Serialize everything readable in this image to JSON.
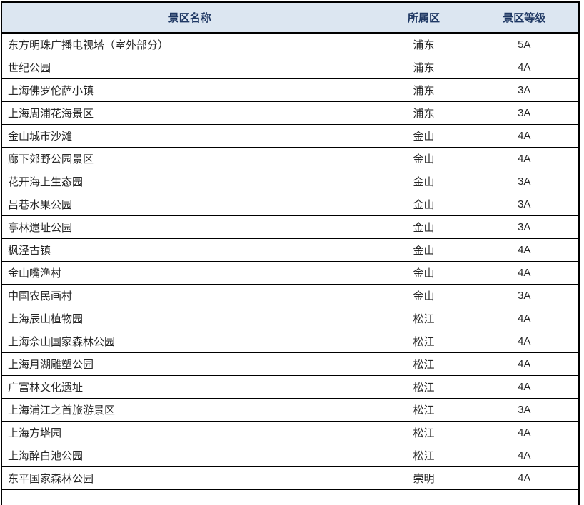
{
  "table": {
    "columns": [
      {
        "label": "景区名称"
      },
      {
        "label": "所属区"
      },
      {
        "label": "景区等级"
      }
    ],
    "rows": [
      {
        "name": "东方明珠广播电视塔（室外部分）",
        "district": "浦东",
        "level": "5A"
      },
      {
        "name": "世纪公园",
        "district": "浦东",
        "level": "4A"
      },
      {
        "name": "上海佛罗伦萨小镇",
        "district": "浦东",
        "level": "3A"
      },
      {
        "name": "上海周浦花海景区",
        "district": "浦东",
        "level": "3A"
      },
      {
        "name": "金山城市沙滩",
        "district": "金山",
        "level": "4A"
      },
      {
        "name": "廊下郊野公园景区",
        "district": "金山",
        "level": "4A"
      },
      {
        "name": "花开海上生态园",
        "district": "金山",
        "level": "3A"
      },
      {
        "name": "吕巷水果公园",
        "district": "金山",
        "level": "3A"
      },
      {
        "name": "亭林遗址公园",
        "district": "金山",
        "level": "3A"
      },
      {
        "name": "枫泾古镇",
        "district": "金山",
        "level": "4A"
      },
      {
        "name": "金山嘴渔村",
        "district": "金山",
        "level": "4A"
      },
      {
        "name": "中国农民画村",
        "district": "金山",
        "level": "3A"
      },
      {
        "name": "上海辰山植物园",
        "district": "松江",
        "level": "4A"
      },
      {
        "name": "上海佘山国家森林公园",
        "district": "松江",
        "level": "4A"
      },
      {
        "name": "上海月湖雕塑公园",
        "district": "松江",
        "level": "4A"
      },
      {
        "name": "广富林文化遗址",
        "district": "松江",
        "level": "4A"
      },
      {
        "name": "上海浦江之首旅游景区",
        "district": "松江",
        "level": "3A"
      },
      {
        "name": "上海方塔园",
        "district": "松江",
        "level": "4A"
      },
      {
        "name": "上海醉白池公园",
        "district": "松江",
        "level": "4A"
      },
      {
        "name": "东平国家森林公园",
        "district": "崇明",
        "level": "4A"
      }
    ],
    "colors": {
      "header_bg": "#dce6f1",
      "border": "#000000",
      "header_text": "#1f3864",
      "body_text": "#262626"
    }
  }
}
